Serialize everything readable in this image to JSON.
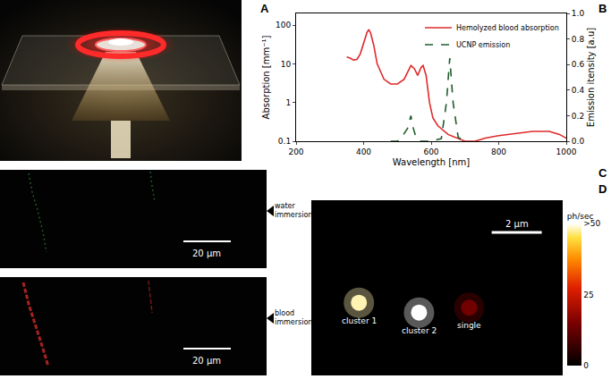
{
  "panel_labels": [
    "A",
    "B",
    "C",
    "D"
  ],
  "chart_data": [
    {
      "type": "line",
      "x_label": "Wavelength [nm]",
      "y_label": "Absorption [mm⁻¹]",
      "y2_label": "Emission itensity [a.u]",
      "xlim": [
        200,
        1000
      ],
      "xticks": [
        200,
        400,
        600,
        800,
        1000
      ],
      "log": "y",
      "ylim": [
        0.1,
        200
      ],
      "yticks": [
        0.1,
        1,
        10,
        100
      ],
      "y2lim": [
        0,
        1
      ],
      "y2ticks": [
        {
          "value": 0,
          "label": "0.0"
        },
        0.2,
        0.4,
        0.6,
        0.8,
        {
          "value": 1,
          "label": "1.0"
        }
      ],
      "legend": "upper right",
      "series": [
        {
          "name": "Hemolyzed blood absorption",
          "color": "#e02a2a",
          "line_style": "solid",
          "x": [
            350,
            360,
            370,
            380,
            390,
            400,
            410,
            415,
            420,
            430,
            440,
            460,
            480,
            500,
            520,
            530,
            540,
            550,
            560,
            570,
            576,
            585,
            595,
            605,
            620,
            650,
            680,
            700,
            730,
            760,
            800,
            850,
            900,
            950,
            980,
            1000
          ],
          "values": [
            15,
            14,
            12.5,
            13,
            18,
            35,
            65,
            75,
            65,
            30,
            10,
            4,
            3,
            3,
            4,
            6,
            9,
            7.5,
            5,
            8,
            9,
            5,
            1,
            0.4,
            0.25,
            0.15,
            0.12,
            0.1,
            0.1,
            0.12,
            0.14,
            0.16,
            0.18,
            0.18,
            0.15,
            0.12
          ]
        },
        {
          "name": "UCNP emission",
          "axis": "y2",
          "color": "#1e5c2c",
          "line_style": "dash",
          "x": [
            480,
            500,
            510,
            520,
            530,
            540,
            545,
            555,
            570,
            600,
            630,
            645,
            655,
            665,
            680,
            700
          ],
          "values": [
            0,
            0,
            0.02,
            0.06,
            0.1,
            0.2,
            0.12,
            0.03,
            0,
            0,
            0.02,
            0.3,
            0.65,
            0.3,
            0.03,
            0
          ]
        }
      ]
    },
    {
      "type": "scatter",
      "xlim": [
        0,
        10
      ],
      "ylim": [
        0,
        7
      ],
      "tick_labels": false,
      "points": {
        "labels": [
          "cluster 1",
          "cluster 2",
          "single"
        ],
        "x": [
          1.9,
          4.3,
          6.3
        ],
        "y": [
          2.9,
          2.5,
          2.7
        ],
        "values": [
          48,
          50,
          14
        ]
      },
      "colorbar": {
        "title": "ph/sec",
        "range": [
          0,
          50
        ],
        "ticks": [
          0,
          25,
          {
            "value": 50,
            "label": ">50"
          }
        ]
      },
      "scale_bar": {
        "label": "2 µm",
        "length": 2
      }
    }
  ],
  "panel_c": {
    "images": [
      {
        "label": "water immersion",
        "scale_bar": "20 µm"
      },
      {
        "label": "blood immersion",
        "scale_bar": "20 µm"
      }
    ]
  }
}
